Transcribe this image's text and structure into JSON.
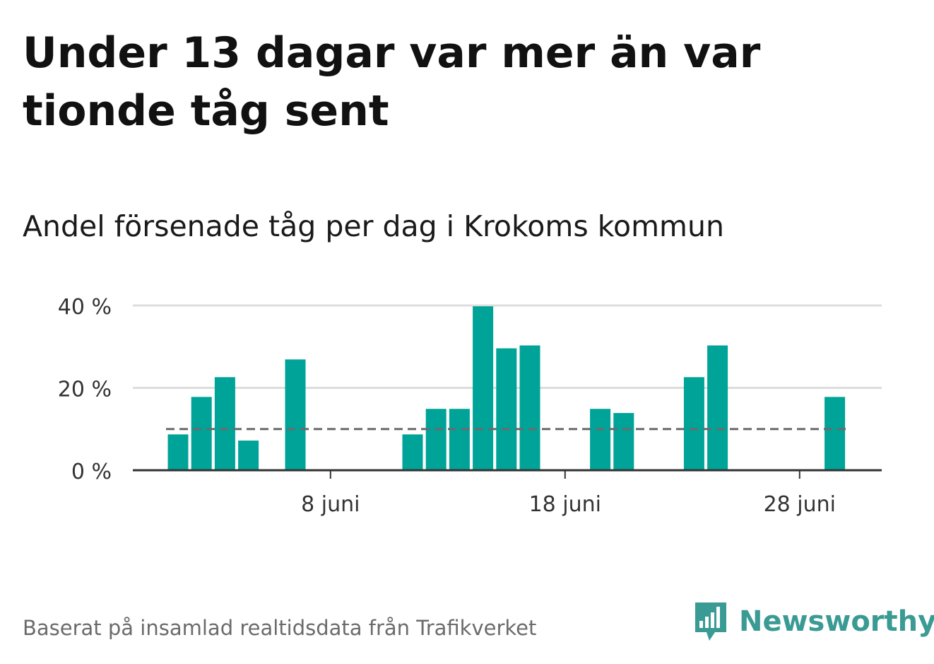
{
  "title": "Under 13 dagar var mer än var tionde tåg sent",
  "subtitle": "Andel försenade tåg per dag i Krokoms kommun",
  "footer": "Baserat på insamlad realtidsdata från Trafikverket",
  "brand": "Newsworthy",
  "colors": {
    "bar": "#00a398",
    "reference": "#6b6b6b",
    "grid": "#dddddd",
    "axis": "#333333",
    "brand": "#3a9b94"
  },
  "chart_data": {
    "type": "bar",
    "x": [
      "1 juni",
      "2 juni",
      "3 juni",
      "4 juni",
      "5 juni",
      "6 juni",
      "7 juni",
      "8 juni",
      "9 juni",
      "10 juni",
      "11 juni",
      "12 juni",
      "13 juni",
      "14 juni",
      "15 juni",
      "16 juni",
      "17 juni",
      "18 juni",
      "19 juni",
      "20 juni",
      "21 juni",
      "22 juni",
      "23 juni",
      "24 juni",
      "25 juni",
      "26 juni",
      "27 juni",
      "28 juni",
      "29 juni"
    ],
    "values": [
      8.7,
      17.8,
      22.6,
      7.2,
      0,
      26.9,
      0,
      0,
      0,
      0,
      8.7,
      14.9,
      14.9,
      39.8,
      29.6,
      30.3,
      0,
      0,
      14.9,
      13.9,
      0,
      0,
      22.6,
      30.3,
      0,
      0,
      0,
      0,
      17.8
    ],
    "reference_line": 10,
    "yticks": [
      0,
      20,
      40
    ],
    "ytick_labels": [
      "0 %",
      "20 %",
      "40 %"
    ],
    "xticks": [
      "8 juni",
      "18 juni",
      "28 juni"
    ],
    "ylim": [
      0,
      40
    ],
    "grid": true
  }
}
